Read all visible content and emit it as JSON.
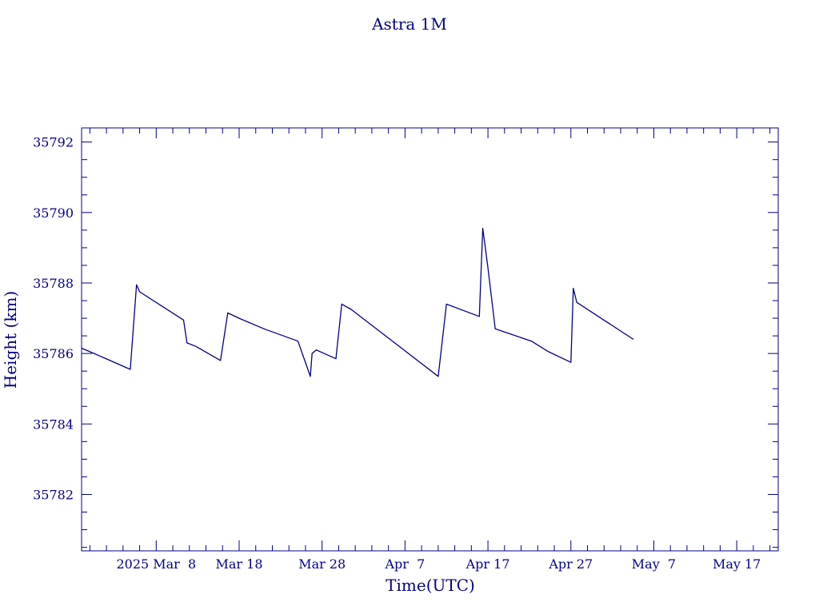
{
  "chart_data": {
    "type": "line",
    "title": "Astra 1M",
    "xlabel": "Time(UTC)",
    "ylabel": "Height (km)",
    "color": "#00008B",
    "ylim": [
      35780.4,
      35792.4
    ],
    "xlim": [
      "2025-02-27 00:00",
      "2025-05-22 00:00"
    ],
    "yticks": [
      35782,
      35784,
      35786,
      35788,
      35790,
      35792
    ],
    "xticks": [
      {
        "label": "2025 Mar  8",
        "date": "2025-03-08"
      },
      {
        "label": "Mar 18",
        "date": "2025-03-18"
      },
      {
        "label": "Mar 28",
        "date": "2025-03-28"
      },
      {
        "label": "Apr  7",
        "date": "2025-04-07"
      },
      {
        "label": "Apr 17",
        "date": "2025-04-17"
      },
      {
        "label": "Apr 27",
        "date": "2025-04-27"
      },
      {
        "label": "May  7",
        "date": "2025-05-07"
      },
      {
        "label": "May 17",
        "date": "2025-05-17"
      }
    ],
    "series": [
      {
        "x": [
          "2025-02-27 00:00",
          "2025-02-28 12:00",
          "2025-03-04 21:00",
          "2025-03-05 15:00",
          "2025-03-06 00:00",
          "2025-03-11 07:00",
          "2025-03-11 17:00",
          "2025-03-12 19:00",
          "2025-03-15 18:00",
          "2025-03-16 15:00",
          "2025-03-18 00:00",
          "2025-03-21 00:00",
          "2025-03-25 02:00",
          "2025-03-26 14:00",
          "2025-03-26 19:00",
          "2025-03-27 07:00",
          "2025-03-29 16:00",
          "2025-03-30 09:00",
          "2025-03-31 12:00",
          "2025-04-11 00:00",
          "2025-04-12 00:00",
          "2025-04-15 23:00",
          "2025-04-16 09:00",
          "2025-04-16 23:00",
          "2025-04-17 21:00",
          "2025-04-22 06:00",
          "2025-04-24 07:00",
          "2025-04-27 00:00",
          "2025-04-27 07:00",
          "2025-04-27 17:00",
          "2025-05-04 13:00"
        ],
        "y": [
          35786.15,
          35786.0,
          35785.55,
          35787.95,
          35787.75,
          35786.95,
          35786.3,
          35786.2,
          35785.8,
          35787.15,
          35787.0,
          35786.7,
          35786.35,
          35785.35,
          35786.0,
          35786.1,
          35785.85,
          35787.4,
          35787.25,
          35785.35,
          35787.4,
          35787.05,
          35789.55,
          35788.5,
          35786.7,
          35786.35,
          35786.05,
          35785.75,
          35787.85,
          35787.45,
          35786.4
        ]
      }
    ]
  }
}
